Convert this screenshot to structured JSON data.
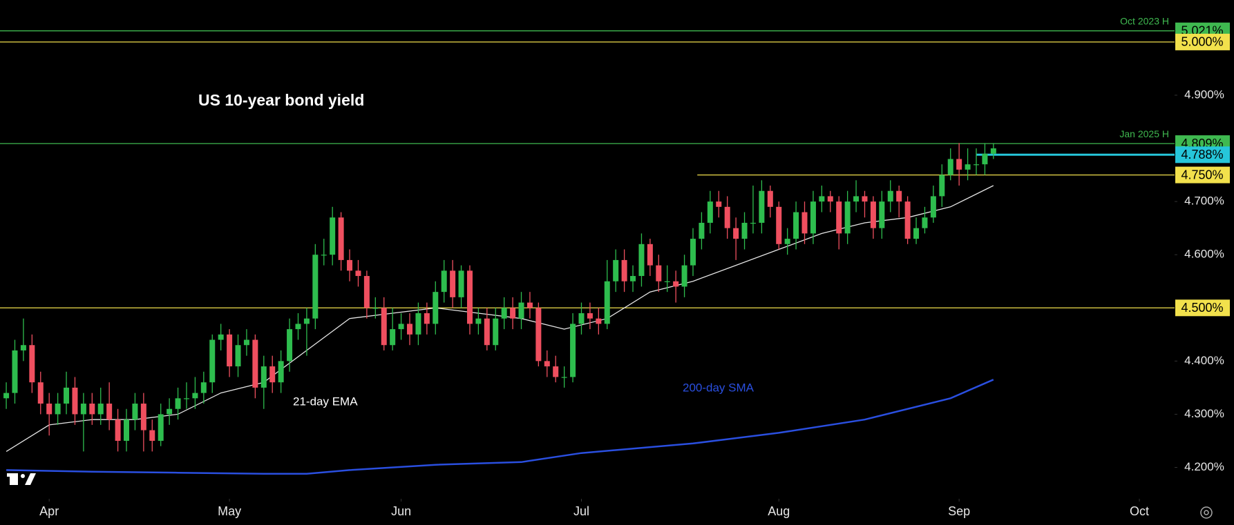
{
  "chart_data": {
    "type": "candlestick",
    "title": "US 10-year bond yield",
    "up_color": "#2ebd4e",
    "down_color": "#ef4f5f",
    "xlim": [
      -0.73,
      136.1
    ],
    "ylim": [
      4.141,
      5.079
    ],
    "xticks": [
      {
        "value": 5,
        "label": "Apr"
      },
      {
        "value": 26,
        "label": "May"
      },
      {
        "value": 46,
        "label": "Jun"
      },
      {
        "value": 67,
        "label": "Jul"
      },
      {
        "value": 90,
        "label": "Aug"
      },
      {
        "value": 111,
        "label": "Sep"
      },
      {
        "value": 132,
        "label": "Oct"
      }
    ],
    "yticks": [
      {
        "value": 4.2,
        "label": "4.200%"
      },
      {
        "value": 4.3,
        "label": "4.300%"
      },
      {
        "value": 4.4,
        "label": "4.400%"
      },
      {
        "value": 4.6,
        "label": "4.600%"
      },
      {
        "value": 4.7,
        "label": "4.700%"
      },
      {
        "value": 4.9,
        "label": "4.900%"
      }
    ],
    "open": [
      4.33,
      4.34,
      4.42,
      4.43,
      4.36,
      4.32,
      4.3,
      4.32,
      4.35,
      4.3,
      4.32,
      4.3,
      4.32,
      4.29,
      4.25,
      4.29,
      4.32,
      4.27,
      4.25,
      4.3,
      4.31,
      4.33,
      4.33,
      4.34,
      4.36,
      4.44,
      4.45,
      4.39,
      4.43,
      4.44,
      4.35,
      4.39,
      4.36,
      4.4,
      4.46,
      4.47,
      4.48,
      4.6,
      4.6,
      4.67,
      4.59,
      4.57,
      4.56,
      4.5,
      4.5,
      4.43,
      4.46,
      4.47,
      4.45,
      4.49,
      4.47,
      4.53,
      4.57,
      4.52,
      4.57,
      4.47,
      4.48,
      4.43,
      4.48,
      4.5,
      4.48,
      4.51,
      4.5,
      4.4,
      4.39,
      4.37,
      4.37,
      4.47,
      4.49,
      4.48,
      4.47,
      4.55,
      4.59,
      4.55,
      4.56,
      4.62,
      4.58,
      4.55,
      4.55,
      4.54,
      4.58,
      4.63,
      4.66,
      4.7,
      4.69,
      4.65,
      4.63,
      4.66,
      4.66,
      4.72,
      4.69,
      4.62,
      4.63,
      4.68,
      4.64,
      4.7,
      4.71,
      4.7,
      4.64,
      4.7,
      4.71,
      4.7,
      4.65,
      4.7,
      4.72,
      4.7,
      4.63,
      4.65,
      4.67,
      4.71,
      4.75,
      4.78,
      4.76,
      4.77,
      4.77,
      4.79
    ],
    "high": [
      4.36,
      4.44,
      4.48,
      4.45,
      4.38,
      4.34,
      4.34,
      4.38,
      4.37,
      4.34,
      4.34,
      4.35,
      4.36,
      4.31,
      4.31,
      4.34,
      4.34,
      4.29,
      4.32,
      4.33,
      4.35,
      4.36,
      4.37,
      4.38,
      4.45,
      4.47,
      4.46,
      4.45,
      4.46,
      4.45,
      4.41,
      4.41,
      4.42,
      4.48,
      4.49,
      4.5,
      4.62,
      4.63,
      4.69,
      4.68,
      4.61,
      4.59,
      4.57,
      4.52,
      4.52,
      4.5,
      4.49,
      4.49,
      4.51,
      4.51,
      4.55,
      4.59,
      4.59,
      4.58,
      4.58,
      4.5,
      4.5,
      4.5,
      4.52,
      4.52,
      4.53,
      4.53,
      4.51,
      4.42,
      4.41,
      4.39,
      4.49,
      4.51,
      4.51,
      4.5,
      4.59,
      4.61,
      4.61,
      4.58,
      4.64,
      4.63,
      4.6,
      4.58,
      4.57,
      4.6,
      4.65,
      4.68,
      4.72,
      4.72,
      4.71,
      4.67,
      4.68,
      4.73,
      4.74,
      4.73,
      4.7,
      4.65,
      4.7,
      4.7,
      4.72,
      4.73,
      4.72,
      4.71,
      4.72,
      4.74,
      4.72,
      4.71,
      4.72,
      4.74,
      4.73,
      4.71,
      4.67,
      4.69,
      4.73,
      4.77,
      4.8,
      4.81,
      4.8,
      4.8,
      4.81,
      4.81
    ],
    "low": [
      4.31,
      4.32,
      4.4,
      4.34,
      4.3,
      4.26,
      4.28,
      4.3,
      4.28,
      4.23,
      4.28,
      4.28,
      4.27,
      4.23,
      4.23,
      4.27,
      4.23,
      4.23,
      4.24,
      4.28,
      4.29,
      4.31,
      4.31,
      4.32,
      4.34,
      4.42,
      4.37,
      4.37,
      4.41,
      4.33,
      4.31,
      4.34,
      4.34,
      4.38,
      4.44,
      4.41,
      4.46,
      4.58,
      4.58,
      4.57,
      4.55,
      4.54,
      4.48,
      4.48,
      4.42,
      4.42,
      4.44,
      4.43,
      4.43,
      4.45,
      4.45,
      4.51,
      4.5,
      4.5,
      4.45,
      4.45,
      4.42,
      4.42,
      4.46,
      4.46,
      4.46,
      4.48,
      4.39,
      4.37,
      4.36,
      4.35,
      4.36,
      4.45,
      4.46,
      4.45,
      4.46,
      4.53,
      4.53,
      4.53,
      4.54,
      4.56,
      4.53,
      4.53,
      4.51,
      4.52,
      4.56,
      4.61,
      4.64,
      4.67,
      4.63,
      4.59,
      4.61,
      4.64,
      4.64,
      4.67,
      4.61,
      4.6,
      4.61,
      4.62,
      4.62,
      4.68,
      4.68,
      4.61,
      4.62,
      4.68,
      4.67,
      4.63,
      4.63,
      4.68,
      4.67,
      4.62,
      4.62,
      4.64,
      4.66,
      4.69,
      4.74,
      4.73,
      4.74,
      4.75,
      4.75,
      4.78
    ],
    "close": [
      4.34,
      4.42,
      4.43,
      4.36,
      4.32,
      4.3,
      4.32,
      4.35,
      4.3,
      4.32,
      4.3,
      4.32,
      4.29,
      4.25,
      4.29,
      4.32,
      4.27,
      4.25,
      4.3,
      4.31,
      4.33,
      4.33,
      4.34,
      4.36,
      4.44,
      4.45,
      4.39,
      4.43,
      4.44,
      4.35,
      4.39,
      4.36,
      4.4,
      4.46,
      4.47,
      4.48,
      4.6,
      4.6,
      4.67,
      4.59,
      4.57,
      4.56,
      4.5,
      4.5,
      4.43,
      4.46,
      4.47,
      4.45,
      4.49,
      4.47,
      4.53,
      4.57,
      4.52,
      4.57,
      4.47,
      4.48,
      4.43,
      4.48,
      4.5,
      4.48,
      4.51,
      4.5,
      4.4,
      4.39,
      4.37,
      4.37,
      4.47,
      4.49,
      4.48,
      4.47,
      4.55,
      4.59,
      4.55,
      4.56,
      4.62,
      4.58,
      4.55,
      4.55,
      4.54,
      4.58,
      4.63,
      4.66,
      4.7,
      4.69,
      4.65,
      4.63,
      4.66,
      4.66,
      4.72,
      4.69,
      4.62,
      4.63,
      4.68,
      4.64,
      4.7,
      4.71,
      4.7,
      4.64,
      4.7,
      4.71,
      4.7,
      4.65,
      4.7,
      4.72,
      4.7,
      4.63,
      4.65,
      4.67,
      4.71,
      4.75,
      4.78,
      4.76,
      4.77,
      4.77,
      4.79,
      4.8
    ],
    "lines": [
      {
        "name": "21-day EMA",
        "color": "#e6e6e6",
        "x": [
          0,
          5,
          10,
          15,
          20,
          25,
          30,
          35,
          40,
          45,
          50,
          55,
          60,
          65,
          70,
          75,
          80,
          85,
          90,
          95,
          100,
          105,
          110,
          115
        ],
        "values": [
          4.23,
          4.28,
          4.29,
          4.29,
          4.3,
          4.34,
          4.36,
          4.42,
          4.48,
          4.49,
          4.5,
          4.49,
          4.48,
          4.46,
          4.48,
          4.53,
          4.55,
          4.58,
          4.61,
          4.64,
          4.66,
          4.67,
          4.69,
          4.73
        ]
      },
      {
        "name": "200-day SMA",
        "color": "#2a4fe0",
        "x": [
          0,
          10,
          20,
          30,
          35,
          40,
          50,
          60,
          67,
          80,
          90,
          100,
          110,
          115
        ],
        "values": [
          4.195,
          4.192,
          4.19,
          4.188,
          4.188,
          4.195,
          4.205,
          4.21,
          4.227,
          4.245,
          4.265,
          4.29,
          4.33,
          4.365
        ]
      }
    ],
    "levels": [
      {
        "value": 5.021,
        "label": "5.021%",
        "name": "Oct 2023 H",
        "color": "#3fb950",
        "from": -0.73
      },
      {
        "value": 5.0,
        "label": "5.000%",
        "color": "#f2e14c",
        "from": -0.73
      },
      {
        "value": 4.809,
        "label": "4.809%",
        "name": "Jan 2025 H",
        "color": "#3fb950",
        "from": -0.73
      },
      {
        "value": 4.788,
        "label": "4.788%",
        "color": "#26c6da",
        "from": 113
      },
      {
        "value": 4.75,
        "label": "4.750%",
        "color": "#f2e14c",
        "from": 80.5
      },
      {
        "value": 4.5,
        "label": "4.500%",
        "color": "#f2e14c",
        "from": -0.73
      }
    ]
  }
}
